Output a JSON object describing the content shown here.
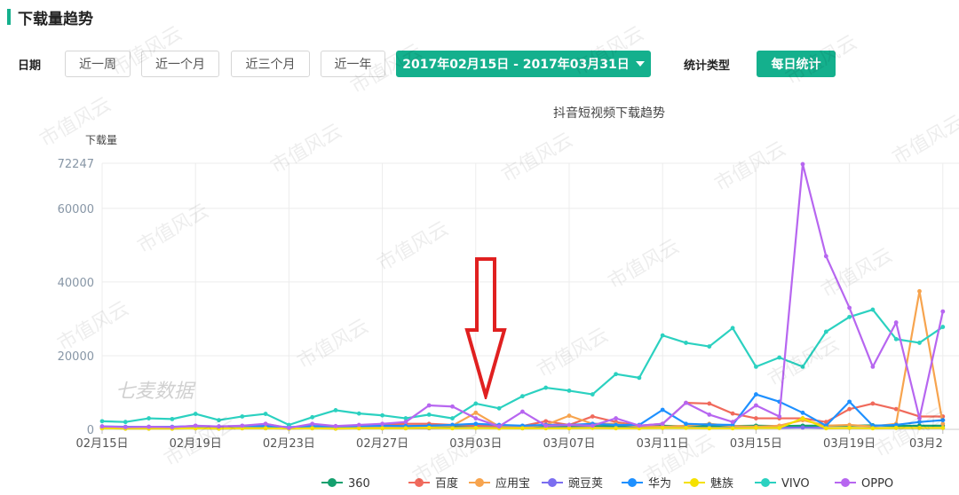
{
  "section_title": "下载量趋势",
  "filters": {
    "date_label": "日期",
    "ranges": [
      "近一周",
      "近一个月",
      "近三个月",
      "近一年"
    ],
    "date_range": "2017年02月15日 - 2017年03月31日",
    "stat_type_label": "统计类型",
    "stat_type_value": "每日统计"
  },
  "watermark_text": "市值风云",
  "chart_watermark": "七麦数据",
  "colors": {
    "accent": "#14b08d",
    "arrow": "#e02020"
  },
  "chart_data": {
    "type": "line",
    "title": "抖音短视频下载趋势",
    "ylabel": "下载量",
    "xlabel": "",
    "ylim": [
      0,
      72247
    ],
    "y_ticks": [
      0,
      20000,
      40000,
      60000,
      72247
    ],
    "x_tick_labels": [
      "02月15日",
      "02月19日",
      "02月23日",
      "02月27日",
      "03月03日",
      "03月07日",
      "03月11日",
      "03月15日",
      "03月19日",
      "03月2"
    ],
    "x": [
      "02-15",
      "02-16",
      "02-17",
      "02-18",
      "02-19",
      "02-20",
      "02-21",
      "02-22",
      "02-23",
      "02-24",
      "02-25",
      "02-26",
      "02-27",
      "02-28",
      "03-01",
      "03-02",
      "03-03",
      "03-04",
      "03-05",
      "03-06",
      "03-07",
      "03-08",
      "03-09",
      "03-10",
      "03-11",
      "03-12",
      "03-13",
      "03-14",
      "03-15",
      "03-16",
      "03-17",
      "03-18",
      "03-19",
      "03-20",
      "03-21",
      "03-22",
      "03-23"
    ],
    "legend_position": "bottom",
    "grid": true,
    "series": [
      {
        "name": "360",
        "color": "#14a06e",
        "values": [
          600,
          500,
          600,
          500,
          700,
          600,
          700,
          700,
          400,
          600,
          600,
          600,
          700,
          600,
          700,
          800,
          900,
          900,
          700,
          800,
          700,
          900,
          800,
          800,
          1000,
          800,
          900,
          900,
          1000,
          900,
          1000,
          1000,
          1000,
          1100,
          900,
          1000,
          1000
        ]
      },
      {
        "name": "百度",
        "color": "#f06a5c",
        "values": [
          500,
          400,
          400,
          400,
          600,
          500,
          600,
          1000,
          300,
          800,
          500,
          700,
          1300,
          1500,
          1500,
          1200,
          1000,
          900,
          900,
          2200,
          1200,
          3500,
          2000,
          1000,
          1500,
          7200,
          7000,
          4300,
          3000,
          3000,
          3000,
          2000,
          5500,
          7000,
          5500,
          3500,
          3500
        ]
      },
      {
        "name": "应用宝",
        "color": "#f7a44e",
        "values": [
          400,
          300,
          300,
          300,
          400,
          300,
          400,
          1500,
          300,
          400,
          300,
          500,
          800,
          600,
          900,
          1000,
          4500,
          800,
          600,
          1200,
          3700,
          1500,
          1500,
          800,
          700,
          1000,
          1500,
          900,
          700,
          1000,
          2500,
          1000,
          1200,
          800,
          1500,
          37500,
          1500
        ]
      },
      {
        "name": "豌豆荚",
        "color": "#7b6ef0",
        "values": [
          300,
          200,
          200,
          200,
          300,
          200,
          300,
          300,
          200,
          300,
          200,
          300,
          300,
          300,
          300,
          400,
          500,
          400,
          300,
          400,
          400,
          500,
          400,
          400,
          400,
          500,
          400,
          400,
          400,
          400,
          500,
          400,
          400,
          400,
          400,
          400,
          400
        ]
      },
      {
        "name": "华为",
        "color": "#1e90ff",
        "values": [
          800,
          700,
          700,
          700,
          900,
          800,
          900,
          900,
          600,
          900,
          800,
          900,
          1000,
          900,
          1000,
          1200,
          1500,
          1200,
          1000,
          1200,
          1200,
          1500,
          1200,
          1200,
          5300,
          1500,
          1300,
          1200,
          9500,
          7500,
          4500,
          1000,
          7500,
          1000,
          1200,
          2000,
          2500
        ]
      },
      {
        "name": "魅族",
        "color": "#f5e100",
        "values": [
          300,
          200,
          200,
          200,
          300,
          200,
          300,
          300,
          200,
          300,
          200,
          300,
          300,
          300,
          400,
          300,
          400,
          300,
          300,
          300,
          300,
          400,
          300,
          300,
          400,
          400,
          300,
          300,
          400,
          400,
          3000,
          300,
          400,
          300,
          400,
          400,
          400
        ]
      },
      {
        "name": "VIVO",
        "color": "#2bd1c0",
        "values": [
          2200,
          2000,
          3000,
          2800,
          4200,
          2500,
          3500,
          4200,
          1200,
          3300,
          5200,
          4300,
          3800,
          3000,
          4000,
          3000,
          7000,
          5700,
          9000,
          11300,
          10500,
          9500,
          15000,
          14000,
          25500,
          23500,
          22500,
          27500,
          17000,
          19500,
          17000,
          26500,
          30500,
          32500,
          24500,
          23500,
          27800
        ]
      },
      {
        "name": "OPPO",
        "color": "#b766f0",
        "values": [
          800,
          600,
          700,
          600,
          1000,
          800,
          1000,
          1500,
          400,
          1500,
          900,
          1200,
          1500,
          2000,
          6500,
          6200,
          3000,
          800,
          4800,
          1000,
          1200,
          1000,
          3000,
          1000,
          1500,
          7200,
          4000,
          2000,
          6500,
          3500,
          72000,
          47000,
          33000,
          17000,
          29000,
          3000,
          32000
        ]
      }
    ]
  }
}
